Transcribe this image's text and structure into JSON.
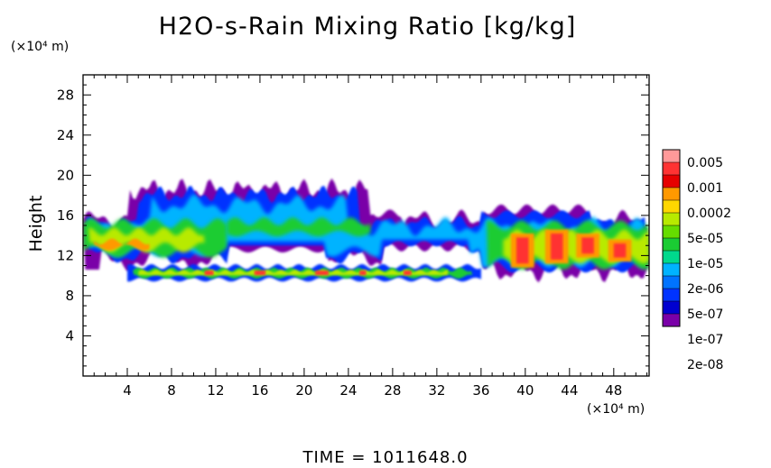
{
  "chart_data": {
    "type": "heatmap",
    "title": "H2O-s-Rain Mixing Ratio [kg/kg]",
    "ylabel": "Height",
    "x_unit": "(×10⁴ m)",
    "y_unit": "(×10⁴ m)",
    "xlim": [
      0,
      51.2
    ],
    "ylim": [
      0,
      30
    ],
    "x_ticks": [
      "4",
      "8",
      "12",
      "16",
      "20",
      "24",
      "28",
      "32",
      "36",
      "40",
      "44",
      "48"
    ],
    "y_ticks": [
      "4",
      "8",
      "12",
      "16",
      "20",
      "24",
      "28"
    ],
    "colorbar": {
      "labels": [
        "0.005",
        "0.001",
        "0.0002",
        "5e-05",
        "1e-05",
        "2e-06",
        "5e-07",
        "1e-07",
        "2e-08"
      ],
      "colors": [
        "#ff9999",
        "#ff3333",
        "#e60000",
        "#ff9900",
        "#ffd700",
        "#b8ea00",
        "#66dd00",
        "#1acc33",
        "#00d98c",
        "#00b3ff",
        "#0073ff",
        "#0033ff",
        "#0000d0",
        "#7a00a8"
      ]
    },
    "cloud_regions": [
      {
        "name": "upper cloud band",
        "x": [
          0,
          51.2
        ],
        "y": [
          10.5,
          19.5
        ],
        "level": "5e-07"
      },
      {
        "name": "lower layer",
        "x": [
          4,
          36
        ],
        "y": [
          9.5,
          11
        ],
        "level": "1e-05"
      },
      {
        "name": "convective cores",
        "x": [
          39,
          48
        ],
        "y": [
          10,
          14.5
        ],
        "level": "0.001"
      }
    ],
    "footer": "TIME = 1011648.0"
  }
}
